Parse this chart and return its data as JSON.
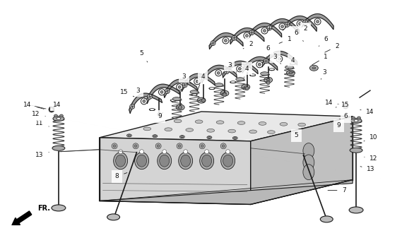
{
  "bg_color": "#ffffff",
  "fig_width": 5.86,
  "fig_height": 3.2,
  "dpi": 100,
  "line_color": "#1a1a1a",
  "text_color": "#111111",
  "font_size": 6.5,
  "font_size_bold": 7,
  "engine_color": "#e0e0e0",
  "engine_dark": "#c8c8c8",
  "engine_darker": "#b0b0b0",
  "part_color": "#555555",
  "spring_color": "#333333",
  "rocker_fill": "#888888",
  "rocker_outline": "#222222"
}
